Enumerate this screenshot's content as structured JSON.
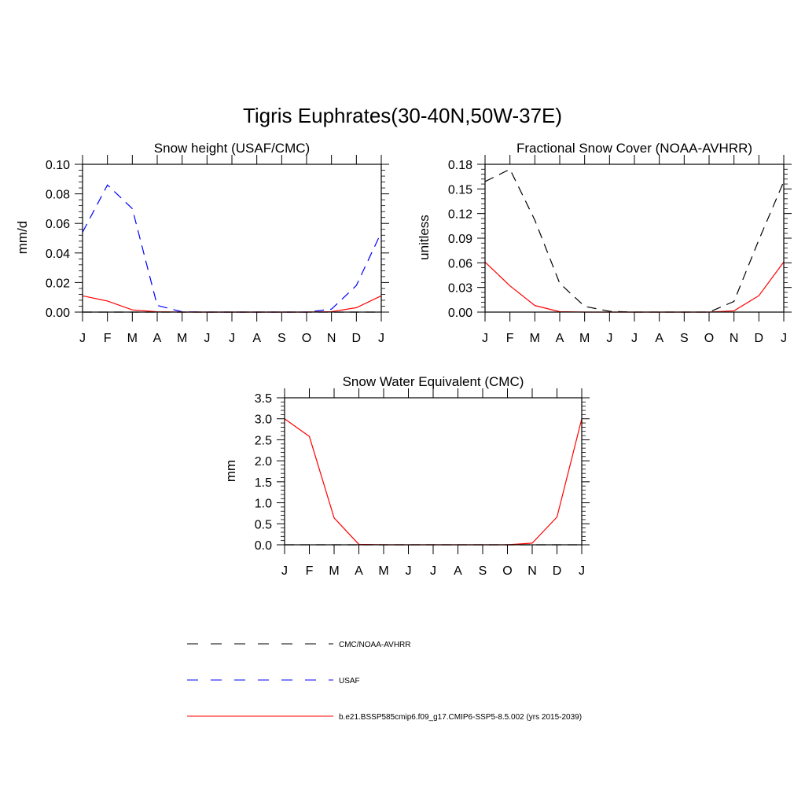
{
  "figure": {
    "title": "Tigris Euphrates(30-40N,50W-37E)"
  },
  "months": [
    "J",
    "F",
    "M",
    "A",
    "M",
    "J",
    "J",
    "A",
    "S",
    "O",
    "N",
    "D",
    "J"
  ],
  "colors": {
    "obs": "#000000",
    "usaf": "#0000ff",
    "model": "#ff0000"
  },
  "chart_data": [
    {
      "type": "line",
      "title": "Snow height (USAF/CMC)",
      "ylabel": "mm/d",
      "ylim": [
        0,
        0.1
      ],
      "yticks": [
        0.0,
        0.02,
        0.04,
        0.06,
        0.08,
        0.1
      ],
      "ytick_labels": [
        "0.00",
        "0.02",
        "0.04",
        "0.06",
        "0.08",
        "0.10"
      ],
      "categories": [
        "J",
        "F",
        "M",
        "A",
        "M",
        "J",
        "J",
        "A",
        "S",
        "O",
        "N",
        "D",
        "J"
      ],
      "series": [
        {
          "name": "CMC/NOAA-AVHRR",
          "style": "dashed",
          "color": "#000000",
          "values": [
            0,
            0,
            0,
            0,
            0,
            0,
            0,
            0,
            0,
            0,
            0,
            0,
            0
          ]
        },
        {
          "name": "USAF",
          "style": "dashed",
          "color": "#0000ff",
          "values": [
            0.054,
            0.086,
            0.07,
            0.0045,
            0.0002,
            0,
            0,
            0,
            0,
            0,
            0.002,
            0.018,
            0.054
          ]
        },
        {
          "name": "b.e21.BSSP585cmip6.f09_g17.CMIP6-SSP5-8.5.002 (yrs 2015-2039)",
          "style": "solid",
          "color": "#ff0000",
          "values": [
            0.011,
            0.0075,
            0.0015,
            0.0002,
            0,
            0,
            0,
            0,
            0,
            0,
            0.0003,
            0.003,
            0.011
          ]
        }
      ]
    },
    {
      "type": "line",
      "title": "Fractional Snow Cover (NOAA-AVHRR)",
      "ylabel": "unitless",
      "ylim": [
        0,
        0.18
      ],
      "yticks": [
        0.0,
        0.03,
        0.06,
        0.09,
        0.12,
        0.15,
        0.18
      ],
      "ytick_labels": [
        "0.00",
        "0.03",
        "0.06",
        "0.09",
        "0.12",
        "0.15",
        "0.18"
      ],
      "categories": [
        "J",
        "F",
        "M",
        "A",
        "M",
        "J",
        "J",
        "A",
        "S",
        "O",
        "N",
        "D",
        "J"
      ],
      "series": [
        {
          "name": "CMC/NOAA-AVHRR",
          "style": "dashed",
          "color": "#000000",
          "values": [
            0.159,
            0.174,
            0.112,
            0.035,
            0.007,
            0.001,
            0,
            0,
            0,
            0,
            0.013,
            0.088,
            0.159
          ]
        },
        {
          "name": "b.e21.BSSP585cmip6.f09_g17.CMIP6-SSP5-8.5.002 (yrs 2015-2039)",
          "style": "solid",
          "color": "#ff0000",
          "values": [
            0.061,
            0.032,
            0.008,
            0.0005,
            0,
            0,
            0,
            0,
            0,
            0,
            0.0015,
            0.02,
            0.061
          ]
        }
      ]
    },
    {
      "type": "line",
      "title": "Snow Water Equivalent (CMC)",
      "ylabel": "mm",
      "ylim": [
        0,
        3.5
      ],
      "yticks": [
        0.0,
        0.5,
        1.0,
        1.5,
        2.0,
        2.5,
        3.0,
        3.5
      ],
      "ytick_labels": [
        "0.0",
        "0.5",
        "1.0",
        "1.5",
        "2.0",
        "2.5",
        "3.0",
        "3.5"
      ],
      "categories": [
        "J",
        "F",
        "M",
        "A",
        "M",
        "J",
        "J",
        "A",
        "S",
        "O",
        "N",
        "D",
        "J"
      ],
      "series": [
        {
          "name": "CMC/NOAA-AVHRR",
          "style": "dashed",
          "color": "#000000",
          "values": [
            0,
            0,
            0,
            0,
            0,
            0,
            0,
            0,
            0,
            0,
            0,
            0,
            0
          ]
        },
        {
          "name": "b.e21.BSSP585cmip6.f09_g17.CMIP6-SSP5-8.5.002 (yrs 2015-2039)",
          "style": "solid",
          "color": "#ff0000",
          "values": [
            3.0,
            2.58,
            0.64,
            0.01,
            0,
            0,
            0,
            0,
            0,
            0,
            0.04,
            0.66,
            3.0
          ]
        }
      ]
    }
  ],
  "legend": [
    {
      "label": "CMC/NOAA-AVHRR",
      "style": "dashed",
      "color": "#000000"
    },
    {
      "label": "USAF",
      "style": "dashed",
      "color": "#0000ff"
    },
    {
      "label": "b.e21.BSSP585cmip6.f09_g17.CMIP6-SSP5-8.5.002 (yrs 2015-2039)",
      "style": "solid",
      "color": "#ff0000"
    }
  ]
}
